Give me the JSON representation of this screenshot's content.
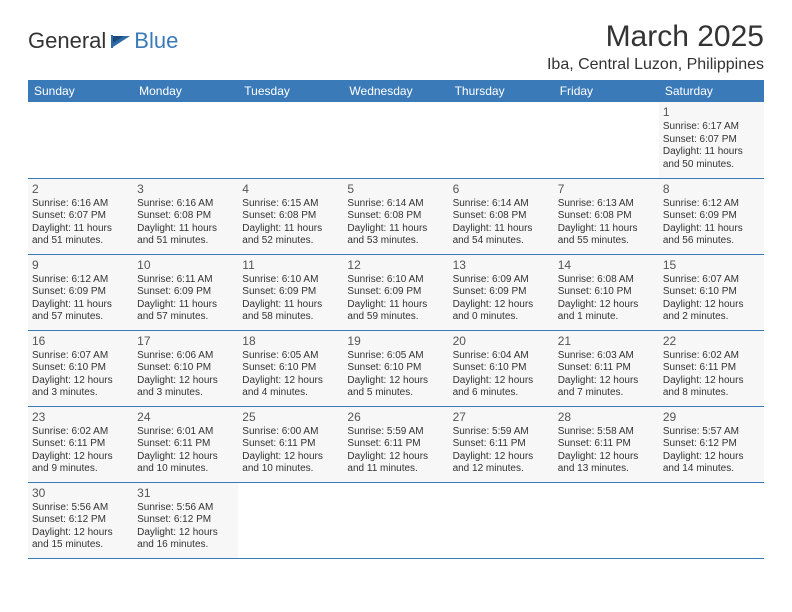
{
  "logo": {
    "general": "General",
    "blue": "Blue"
  },
  "title": "March 2025",
  "location": "Iba, Central Luzon, Philippines",
  "colors": {
    "header_bg": "#3a7ab8",
    "header_text": "#ffffff",
    "text": "#333333",
    "cell_bg": "#f7f7f7",
    "border": "#3a7ab8"
  },
  "day_headers": [
    "Sunday",
    "Monday",
    "Tuesday",
    "Wednesday",
    "Thursday",
    "Friday",
    "Saturday"
  ],
  "weeks": [
    [
      null,
      null,
      null,
      null,
      null,
      null,
      {
        "n": "1",
        "sr": "Sunrise: 6:17 AM",
        "ss": "Sunset: 6:07 PM",
        "dl1": "Daylight: 11 hours",
        "dl2": "and 50 minutes."
      }
    ],
    [
      {
        "n": "2",
        "sr": "Sunrise: 6:16 AM",
        "ss": "Sunset: 6:07 PM",
        "dl1": "Daylight: 11 hours",
        "dl2": "and 51 minutes."
      },
      {
        "n": "3",
        "sr": "Sunrise: 6:16 AM",
        "ss": "Sunset: 6:08 PM",
        "dl1": "Daylight: 11 hours",
        "dl2": "and 51 minutes."
      },
      {
        "n": "4",
        "sr": "Sunrise: 6:15 AM",
        "ss": "Sunset: 6:08 PM",
        "dl1": "Daylight: 11 hours",
        "dl2": "and 52 minutes."
      },
      {
        "n": "5",
        "sr": "Sunrise: 6:14 AM",
        "ss": "Sunset: 6:08 PM",
        "dl1": "Daylight: 11 hours",
        "dl2": "and 53 minutes."
      },
      {
        "n": "6",
        "sr": "Sunrise: 6:14 AM",
        "ss": "Sunset: 6:08 PM",
        "dl1": "Daylight: 11 hours",
        "dl2": "and 54 minutes."
      },
      {
        "n": "7",
        "sr": "Sunrise: 6:13 AM",
        "ss": "Sunset: 6:08 PM",
        "dl1": "Daylight: 11 hours",
        "dl2": "and 55 minutes."
      },
      {
        "n": "8",
        "sr": "Sunrise: 6:12 AM",
        "ss": "Sunset: 6:09 PM",
        "dl1": "Daylight: 11 hours",
        "dl2": "and 56 minutes."
      }
    ],
    [
      {
        "n": "9",
        "sr": "Sunrise: 6:12 AM",
        "ss": "Sunset: 6:09 PM",
        "dl1": "Daylight: 11 hours",
        "dl2": "and 57 minutes."
      },
      {
        "n": "10",
        "sr": "Sunrise: 6:11 AM",
        "ss": "Sunset: 6:09 PM",
        "dl1": "Daylight: 11 hours",
        "dl2": "and 57 minutes."
      },
      {
        "n": "11",
        "sr": "Sunrise: 6:10 AM",
        "ss": "Sunset: 6:09 PM",
        "dl1": "Daylight: 11 hours",
        "dl2": "and 58 minutes."
      },
      {
        "n": "12",
        "sr": "Sunrise: 6:10 AM",
        "ss": "Sunset: 6:09 PM",
        "dl1": "Daylight: 11 hours",
        "dl2": "and 59 minutes."
      },
      {
        "n": "13",
        "sr": "Sunrise: 6:09 AM",
        "ss": "Sunset: 6:09 PM",
        "dl1": "Daylight: 12 hours",
        "dl2": "and 0 minutes."
      },
      {
        "n": "14",
        "sr": "Sunrise: 6:08 AM",
        "ss": "Sunset: 6:10 PM",
        "dl1": "Daylight: 12 hours",
        "dl2": "and 1 minute."
      },
      {
        "n": "15",
        "sr": "Sunrise: 6:07 AM",
        "ss": "Sunset: 6:10 PM",
        "dl1": "Daylight: 12 hours",
        "dl2": "and 2 minutes."
      }
    ],
    [
      {
        "n": "16",
        "sr": "Sunrise: 6:07 AM",
        "ss": "Sunset: 6:10 PM",
        "dl1": "Daylight: 12 hours",
        "dl2": "and 3 minutes."
      },
      {
        "n": "17",
        "sr": "Sunrise: 6:06 AM",
        "ss": "Sunset: 6:10 PM",
        "dl1": "Daylight: 12 hours",
        "dl2": "and 3 minutes."
      },
      {
        "n": "18",
        "sr": "Sunrise: 6:05 AM",
        "ss": "Sunset: 6:10 PM",
        "dl1": "Daylight: 12 hours",
        "dl2": "and 4 minutes."
      },
      {
        "n": "19",
        "sr": "Sunrise: 6:05 AM",
        "ss": "Sunset: 6:10 PM",
        "dl1": "Daylight: 12 hours",
        "dl2": "and 5 minutes."
      },
      {
        "n": "20",
        "sr": "Sunrise: 6:04 AM",
        "ss": "Sunset: 6:10 PM",
        "dl1": "Daylight: 12 hours",
        "dl2": "and 6 minutes."
      },
      {
        "n": "21",
        "sr": "Sunrise: 6:03 AM",
        "ss": "Sunset: 6:11 PM",
        "dl1": "Daylight: 12 hours",
        "dl2": "and 7 minutes."
      },
      {
        "n": "22",
        "sr": "Sunrise: 6:02 AM",
        "ss": "Sunset: 6:11 PM",
        "dl1": "Daylight: 12 hours",
        "dl2": "and 8 minutes."
      }
    ],
    [
      {
        "n": "23",
        "sr": "Sunrise: 6:02 AM",
        "ss": "Sunset: 6:11 PM",
        "dl1": "Daylight: 12 hours",
        "dl2": "and 9 minutes."
      },
      {
        "n": "24",
        "sr": "Sunrise: 6:01 AM",
        "ss": "Sunset: 6:11 PM",
        "dl1": "Daylight: 12 hours",
        "dl2": "and 10 minutes."
      },
      {
        "n": "25",
        "sr": "Sunrise: 6:00 AM",
        "ss": "Sunset: 6:11 PM",
        "dl1": "Daylight: 12 hours",
        "dl2": "and 10 minutes."
      },
      {
        "n": "26",
        "sr": "Sunrise: 5:59 AM",
        "ss": "Sunset: 6:11 PM",
        "dl1": "Daylight: 12 hours",
        "dl2": "and 11 minutes."
      },
      {
        "n": "27",
        "sr": "Sunrise: 5:59 AM",
        "ss": "Sunset: 6:11 PM",
        "dl1": "Daylight: 12 hours",
        "dl2": "and 12 minutes."
      },
      {
        "n": "28",
        "sr": "Sunrise: 5:58 AM",
        "ss": "Sunset: 6:11 PM",
        "dl1": "Daylight: 12 hours",
        "dl2": "and 13 minutes."
      },
      {
        "n": "29",
        "sr": "Sunrise: 5:57 AM",
        "ss": "Sunset: 6:12 PM",
        "dl1": "Daylight: 12 hours",
        "dl2": "and 14 minutes."
      }
    ],
    [
      {
        "n": "30",
        "sr": "Sunrise: 5:56 AM",
        "ss": "Sunset: 6:12 PM",
        "dl1": "Daylight: 12 hours",
        "dl2": "and 15 minutes."
      },
      {
        "n": "31",
        "sr": "Sunrise: 5:56 AM",
        "ss": "Sunset: 6:12 PM",
        "dl1": "Daylight: 12 hours",
        "dl2": "and 16 minutes."
      },
      null,
      null,
      null,
      null,
      null
    ]
  ]
}
